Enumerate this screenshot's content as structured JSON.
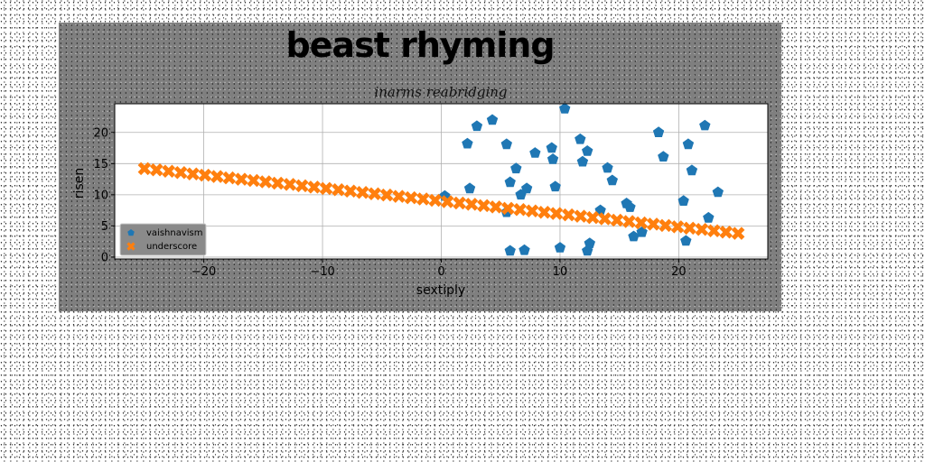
{
  "chart_data": {
    "type": "scatter",
    "title": "beast rhyming",
    "subtitle": "inarms reabridging",
    "xlabel": "sextiply",
    "ylabel": "risen",
    "xlim": [
      -27.5,
      27.5
    ],
    "ylim": [
      -0.3,
      24.6
    ],
    "xticks": [
      -20,
      -10,
      0,
      10,
      20
    ],
    "xtick_labels": [
      "−20",
      "−10",
      "0",
      "10",
      "20"
    ],
    "yticks": [
      0,
      5,
      10,
      15,
      20
    ],
    "ytick_labels": [
      "0",
      "5",
      "10",
      "15",
      "20"
    ],
    "grid": true,
    "legend_position": "lower-left",
    "series": [
      {
        "name": "vaishnavism",
        "color": "#1f77b4",
        "marker": "pentagon",
        "x": [
          0.3,
          2.2,
          2.4,
          3.0,
          4.3,
          5.5,
          5.5,
          5.8,
          5.8,
          6.3,
          6.7,
          7.0,
          7.2,
          7.9,
          9.3,
          9.4,
          9.6,
          10.0,
          10.4,
          11.7,
          11.9,
          12.3,
          12.3,
          12.5,
          13.4,
          14.0,
          14.4,
          15.6,
          15.9,
          16.2,
          16.9,
          18.3,
          18.7,
          20.4,
          20.6,
          20.8,
          21.1,
          22.2,
          22.5,
          23.3
        ],
        "y": [
          9.8,
          18.2,
          11.0,
          21.0,
          22.0,
          18.1,
          7.2,
          12.0,
          1.0,
          14.2,
          10.0,
          1.1,
          11.0,
          16.7,
          17.5,
          15.7,
          11.3,
          1.5,
          23.8,
          18.9,
          15.3,
          17.0,
          1.0,
          2.2,
          7.5,
          14.3,
          12.3,
          8.6,
          8.0,
          3.3,
          4.0,
          20.0,
          16.1,
          9.0,
          2.6,
          18.1,
          13.9,
          21.1,
          6.3,
          10.4
        ]
      },
      {
        "name": "underscore",
        "color": "#ff7f0e",
        "marker": "x",
        "x_range": [
          -25,
          25
        ],
        "count": 50,
        "y_range": [
          14.2,
          3.8
        ]
      }
    ]
  }
}
